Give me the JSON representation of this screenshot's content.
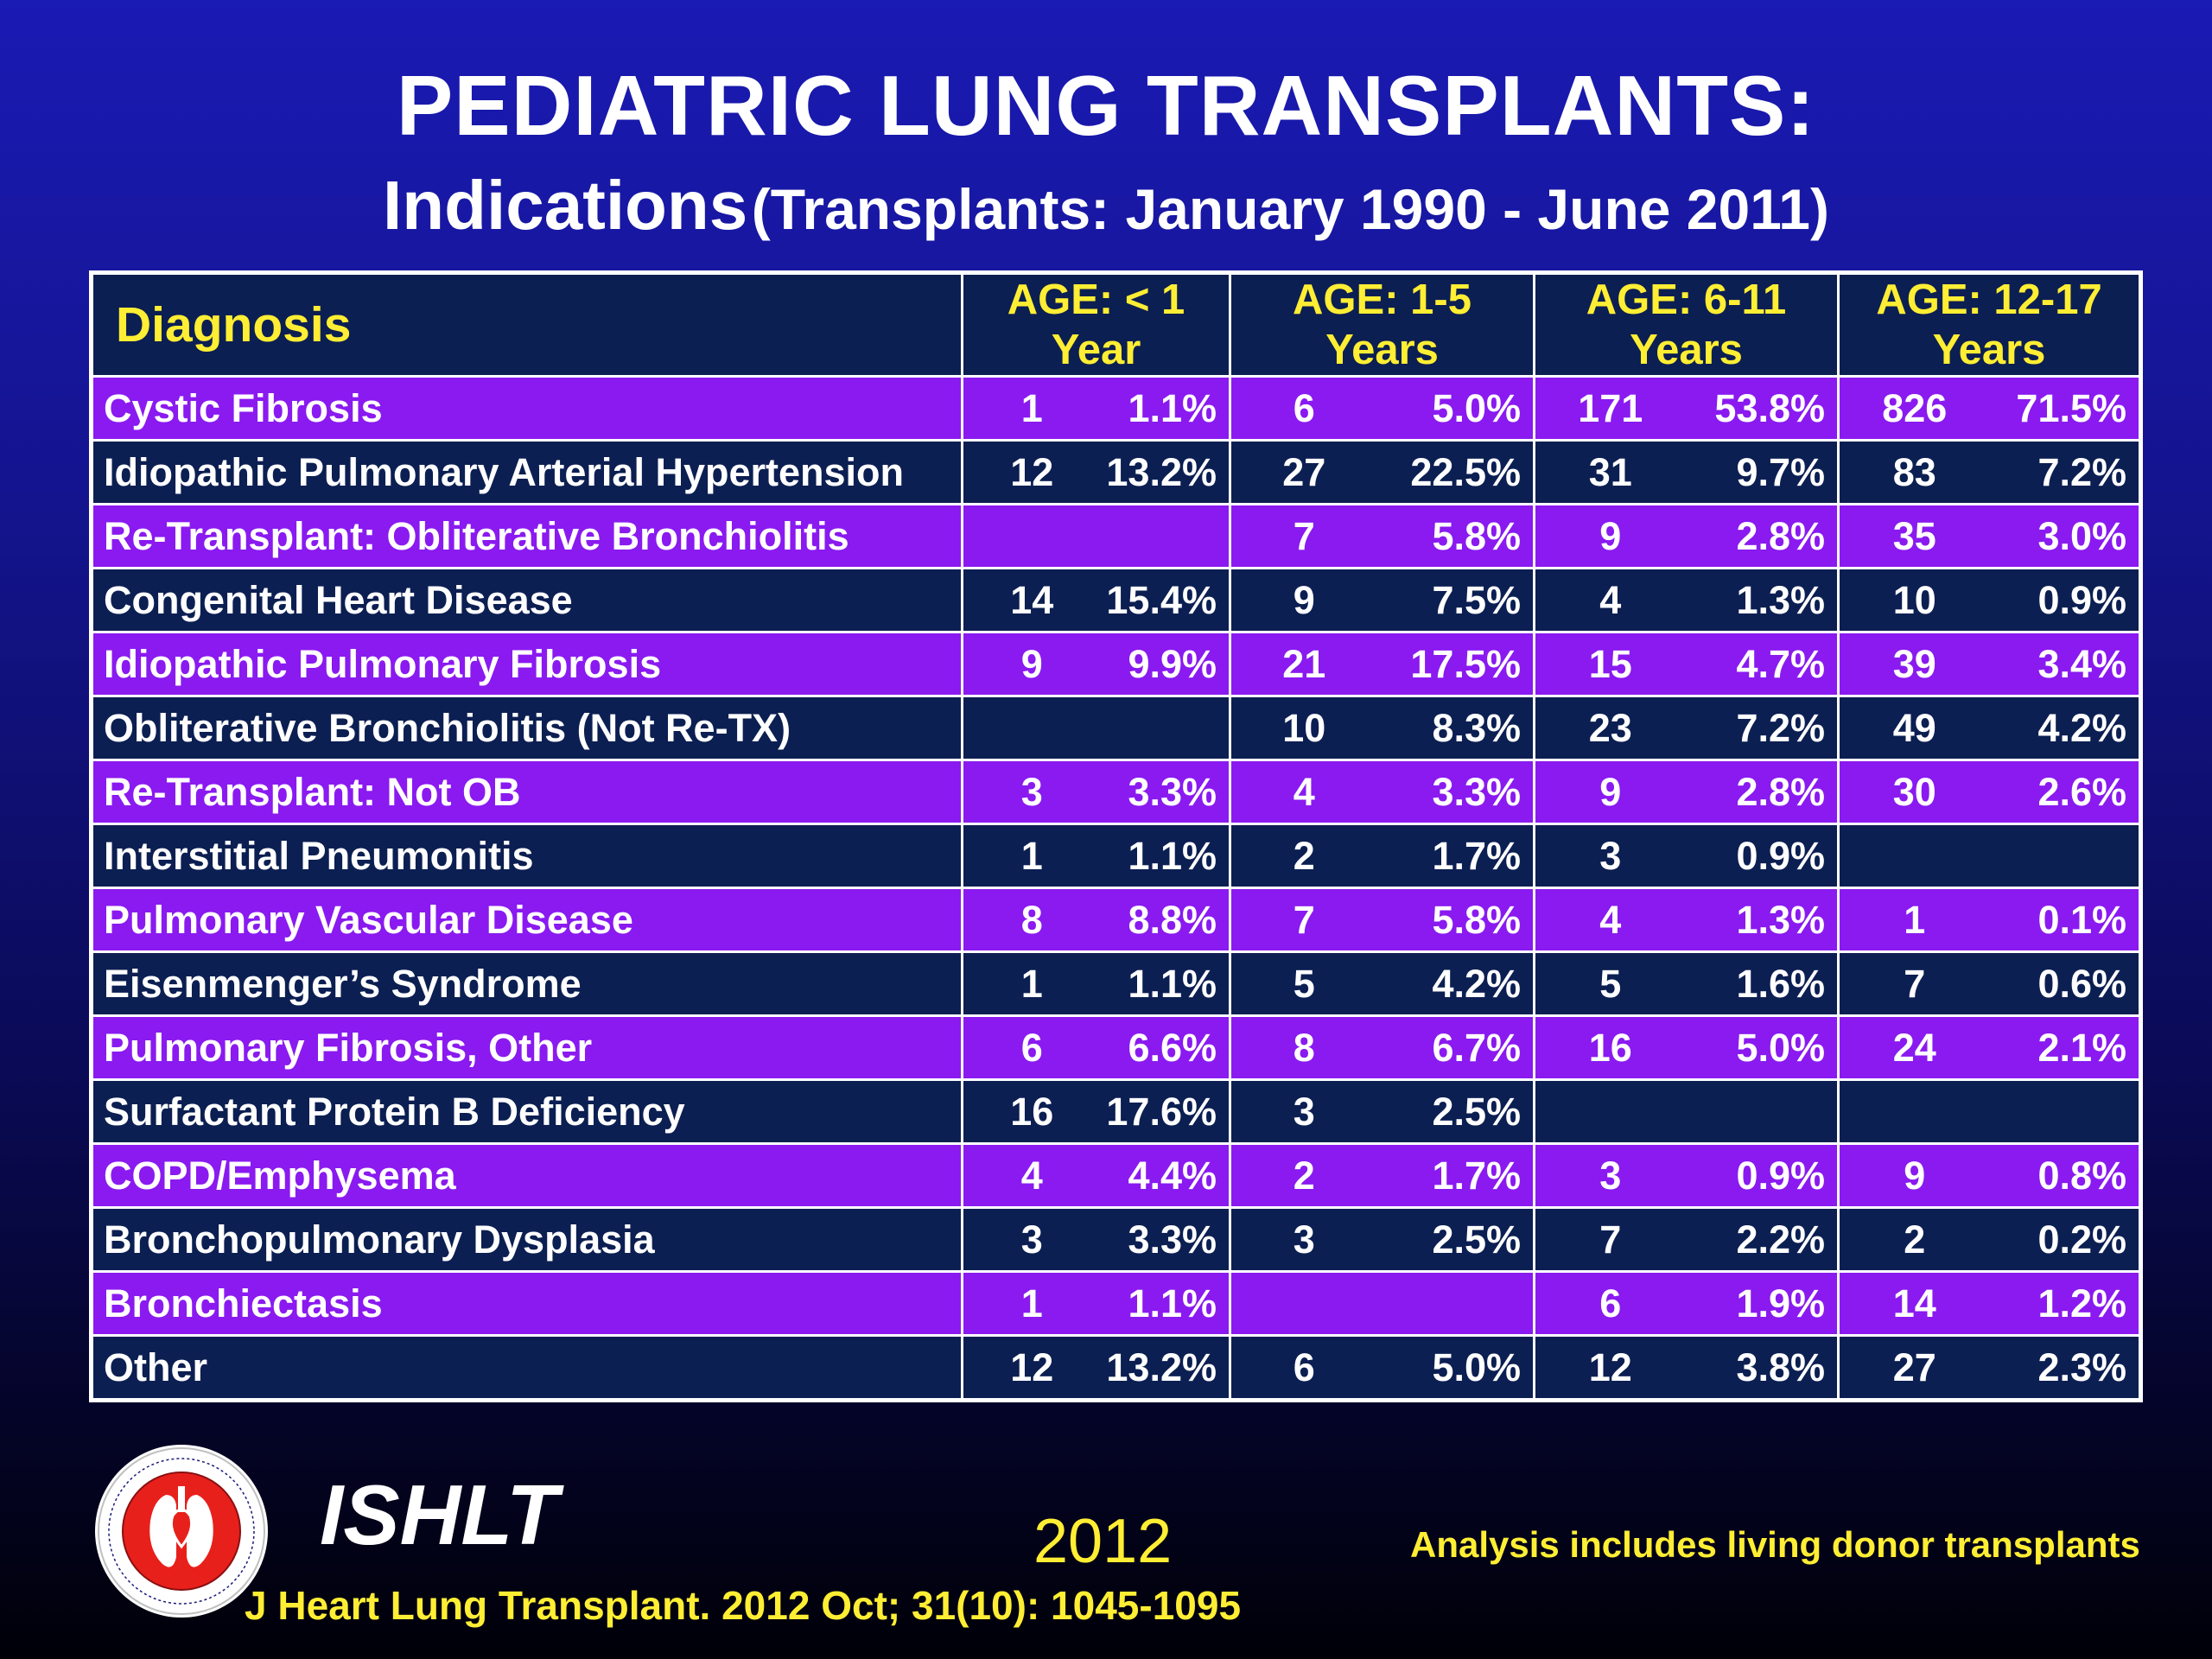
{
  "title": "PEDIATRIC LUNG TRANSPLANTS:",
  "subtitle": {
    "main": "Indications",
    "paren": "(Transplants: January 1990 - June 2011)"
  },
  "table": {
    "headers": [
      {
        "line1": "Diagnosis",
        "line2": ""
      },
      {
        "line1": "AGE: < 1",
        "line2": "Year"
      },
      {
        "line1": "AGE: 1-5",
        "line2": "Years"
      },
      {
        "line1": "AGE: 6-11",
        "line2": "Years"
      },
      {
        "line1": "AGE: 12-17",
        "line2": "Years"
      }
    ],
    "rows": [
      {
        "diagnosis": "Cystic Fibrosis",
        "style": "purple",
        "cells": [
          [
            "1",
            "1.1%"
          ],
          [
            "6",
            "5.0%"
          ],
          [
            "171",
            "53.8%"
          ],
          [
            "826",
            "71.5%"
          ]
        ]
      },
      {
        "diagnosis": "Idiopathic Pulmonary Arterial Hypertension",
        "style": "navy",
        "cells": [
          [
            "12",
            "13.2%"
          ],
          [
            "27",
            "22.5%"
          ],
          [
            "31",
            "9.7%"
          ],
          [
            "83",
            "7.2%"
          ]
        ]
      },
      {
        "diagnosis": "Re-Transplant: Obliterative Bronchiolitis",
        "style": "purple",
        "cells": [
          [
            "",
            ""
          ],
          [
            "7",
            "5.8%"
          ],
          [
            "9",
            "2.8%"
          ],
          [
            "35",
            "3.0%"
          ]
        ]
      },
      {
        "diagnosis": "Congenital Heart Disease",
        "style": "navy",
        "cells": [
          [
            "14",
            "15.4%"
          ],
          [
            "9",
            "7.5%"
          ],
          [
            "4",
            "1.3%"
          ],
          [
            "10",
            "0.9%"
          ]
        ]
      },
      {
        "diagnosis": "Idiopathic Pulmonary Fibrosis",
        "style": "purple",
        "cells": [
          [
            "9",
            "9.9%"
          ],
          [
            "21",
            "17.5%"
          ],
          [
            "15",
            "4.7%"
          ],
          [
            "39",
            "3.4%"
          ]
        ]
      },
      {
        "diagnosis": "Obliterative Bronchiolitis (Not Re-TX)",
        "style": "navy",
        "cells": [
          [
            "",
            ""
          ],
          [
            "10",
            "8.3%"
          ],
          [
            "23",
            "7.2%"
          ],
          [
            "49",
            "4.2%"
          ]
        ]
      },
      {
        "diagnosis": "Re-Transplant: Not OB",
        "style": "purple",
        "cells": [
          [
            "3",
            "3.3%"
          ],
          [
            "4",
            "3.3%"
          ],
          [
            "9",
            "2.8%"
          ],
          [
            "30",
            "2.6%"
          ]
        ]
      },
      {
        "diagnosis": "Interstitial Pneumonitis",
        "style": "navy",
        "cells": [
          [
            "1",
            "1.1%"
          ],
          [
            "2",
            "1.7%"
          ],
          [
            "3",
            "0.9%"
          ],
          [
            "",
            ""
          ]
        ]
      },
      {
        "diagnosis": "Pulmonary Vascular Disease",
        "style": "purple",
        "cells": [
          [
            "8",
            "8.8%"
          ],
          [
            "7",
            "5.8%"
          ],
          [
            "4",
            "1.3%"
          ],
          [
            "1",
            "0.1%"
          ]
        ]
      },
      {
        "diagnosis": "Eisenmenger’s Syndrome",
        "style": "navy",
        "cells": [
          [
            "1",
            "1.1%"
          ],
          [
            "5",
            "4.2%"
          ],
          [
            "5",
            "1.6%"
          ],
          [
            "7",
            "0.6%"
          ]
        ]
      },
      {
        "diagnosis": "Pulmonary Fibrosis, Other",
        "style": "purple",
        "cells": [
          [
            "6",
            "6.6%"
          ],
          [
            "8",
            "6.7%"
          ],
          [
            "16",
            "5.0%"
          ],
          [
            "24",
            "2.1%"
          ]
        ]
      },
      {
        "diagnosis": "Surfactant Protein B Deficiency",
        "style": "navy",
        "cells": [
          [
            "16",
            "17.6%"
          ],
          [
            "3",
            "2.5%"
          ],
          [
            "",
            ""
          ],
          [
            "",
            ""
          ]
        ]
      },
      {
        "diagnosis": "COPD/Emphysema",
        "style": "purple",
        "cells": [
          [
            "4",
            "4.4%"
          ],
          [
            "2",
            "1.7%"
          ],
          [
            "3",
            "0.9%"
          ],
          [
            "9",
            "0.8%"
          ]
        ]
      },
      {
        "diagnosis": "Bronchopulmonary Dysplasia",
        "style": "navy",
        "cells": [
          [
            "3",
            "3.3%"
          ],
          [
            "3",
            "2.5%"
          ],
          [
            "7",
            "2.2%"
          ],
          [
            "2",
            "0.2%"
          ]
        ]
      },
      {
        "diagnosis": "Bronchiectasis",
        "style": "purple",
        "cells": [
          [
            "1",
            "1.1%"
          ],
          [
            "",
            ""
          ],
          [
            "6",
            "1.9%"
          ],
          [
            "14",
            "1.2%"
          ]
        ]
      },
      {
        "diagnosis": "Other",
        "style": "navy",
        "cells": [
          [
            "12",
            "13.2%"
          ],
          [
            "6",
            "5.0%"
          ],
          [
            "12",
            "3.8%"
          ],
          [
            "27",
            "2.3%"
          ]
        ]
      }
    ]
  },
  "footer": {
    "brand": "ISHLT",
    "year": "2012",
    "note": "Analysis includes living donor transplants",
    "citation": "J Heart Lung Transplant.  2012 Oct; 31(10): 1045-1095",
    "logo_icon": "ishlt-seal-icon"
  },
  "colors": {
    "background_top": "#1a1ab4",
    "background_bottom": "#000008",
    "row_purple": "#8a1af0",
    "row_navy": "#0c1f52",
    "header_text": "#ffee33",
    "logo_red": "#e8201c"
  }
}
